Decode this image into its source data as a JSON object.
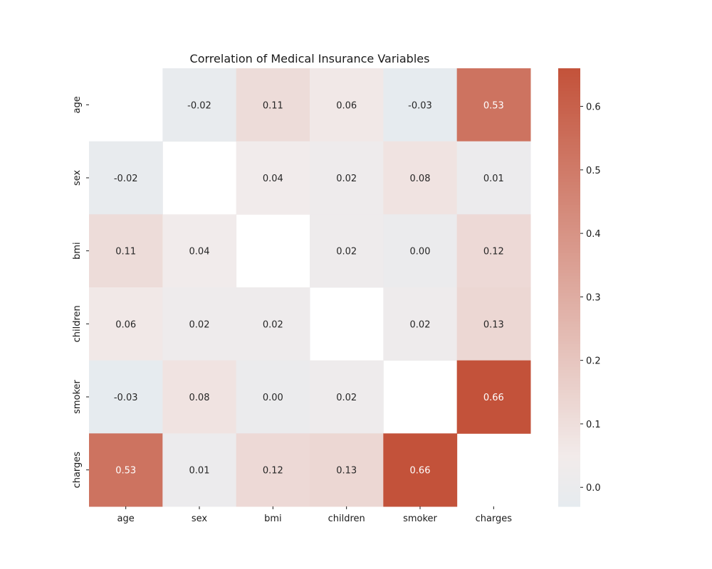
{
  "chart_data": {
    "type": "heatmap",
    "title": "Correlation of Medical Insurance Variables",
    "x_labels": [
      "age",
      "sex",
      "bmi",
      "children",
      "smoker",
      "charges"
    ],
    "y_labels": [
      "age",
      "sex",
      "bmi",
      "children",
      "smoker",
      "charges"
    ],
    "values": [
      [
        null,
        -0.02,
        0.11,
        0.06,
        -0.03,
        0.53
      ],
      [
        -0.02,
        null,
        0.04,
        0.02,
        0.08,
        0.01
      ],
      [
        0.11,
        0.04,
        null,
        0.02,
        0.0,
        0.12
      ],
      [
        0.06,
        0.02,
        0.02,
        null,
        0.02,
        0.13
      ],
      [
        -0.03,
        0.08,
        0.0,
        0.02,
        null,
        0.66
      ],
      [
        0.53,
        0.01,
        0.12,
        0.13,
        0.66,
        null
      ]
    ],
    "cell_labels": [
      [
        "",
        "-0.02",
        "0.11",
        "0.06",
        "-0.03",
        "0.53"
      ],
      [
        "-0.02",
        "",
        "0.04",
        "0.02",
        "0.08",
        "0.01"
      ],
      [
        "0.11",
        "0.04",
        "",
        "0.02",
        "0.00",
        "0.12"
      ],
      [
        "0.06",
        "0.02",
        "0.02",
        "",
        "0.02",
        "0.13"
      ],
      [
        "-0.03",
        "0.08",
        "0.00",
        "0.02",
        "",
        "0.66"
      ],
      [
        "0.53",
        "0.01",
        "0.12",
        "0.13",
        "0.66",
        ""
      ]
    ],
    "diagonal_masked": true,
    "colorbar": {
      "range": [
        -0.03,
        0.66
      ],
      "ticks": [
        0.0,
        0.1,
        0.2,
        0.3,
        0.4,
        0.5,
        0.6
      ],
      "tick_labels": [
        "0.0",
        "0.1",
        "0.2",
        "0.3",
        "0.4",
        "0.5",
        "0.6"
      ],
      "placement": "right"
    },
    "colors": {
      "low": "#e6ebef",
      "mid": "#f2ebea",
      "high": "#c3523a"
    },
    "grid": false
  }
}
